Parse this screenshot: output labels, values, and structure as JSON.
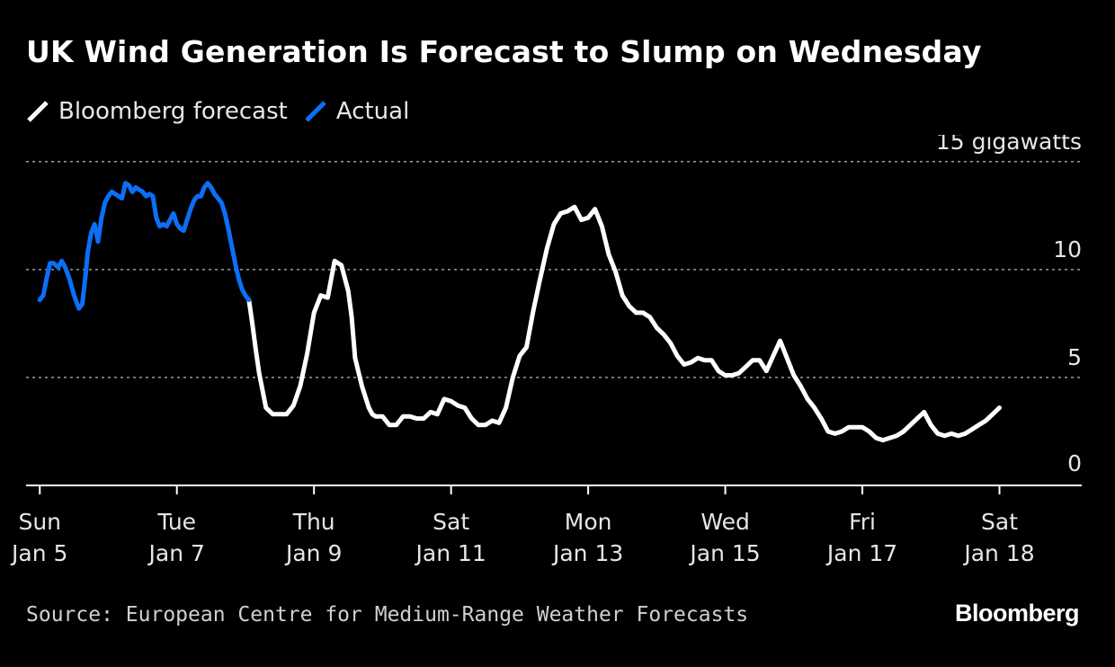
{
  "title": "UK Wind Generation Is Forecast to Slump on Wednesday",
  "legend": [
    {
      "label": "Bloomberg forecast",
      "color": "#ffffff"
    },
    {
      "label": "Actual",
      "color": "#0b6ff7"
    }
  ],
  "source": "Source: European Centre for Medium-Range Weather Forecasts",
  "brand": "Bloomberg",
  "chart_data": {
    "type": "line",
    "title": "UK Wind Generation Is Forecast to Slump on Wednesday",
    "ylabel": "15 gigawatts",
    "ylim": [
      0,
      15.2
    ],
    "xlim": [
      -0.2,
      15.2
    ],
    "yticks": [
      {
        "value": 0,
        "label": "0"
      },
      {
        "value": 5,
        "label": "5"
      },
      {
        "value": 10,
        "label": "10"
      },
      {
        "value": 15,
        "label": "15 gigawatts"
      }
    ],
    "xticks": [
      {
        "value": 0,
        "line1": "Sun",
        "line2": "Jan 5"
      },
      {
        "value": 2,
        "line1": "Tue",
        "line2": "Jan 7"
      },
      {
        "value": 4,
        "line1": "Thu",
        "line2": "Jan 9"
      },
      {
        "value": 6,
        "line1": "Sat",
        "line2": "Jan 11"
      },
      {
        "value": 8,
        "line1": "Mon",
        "line2": "Jan 13"
      },
      {
        "value": 10,
        "line1": "Wed",
        "line2": "Jan 15"
      },
      {
        "value": 12,
        "line1": "Fri",
        "line2": "Jan 17"
      },
      {
        "value": 14,
        "line1": "Sat",
        "line2": "Jan 18"
      }
    ],
    "series": [
      {
        "name": "Actual",
        "color": "#0b6ff7",
        "x": [
          0.0,
          0.05,
          0.1,
          0.15,
          0.2,
          0.27,
          0.32,
          0.37,
          0.43,
          0.5,
          0.57,
          0.62,
          0.67,
          0.7,
          0.75,
          0.8,
          0.85,
          0.9,
          0.95,
          1.0,
          1.05,
          1.1,
          1.15,
          1.2,
          1.25,
          1.3,
          1.35,
          1.4,
          1.45,
          1.5,
          1.55,
          1.6,
          1.65,
          1.7,
          1.75,
          1.8,
          1.85,
          1.9,
          1.95,
          2.0,
          2.05,
          2.1,
          2.15,
          2.2,
          2.25,
          2.3,
          2.35,
          2.4,
          2.45,
          2.5,
          2.55,
          2.6,
          2.65,
          2.7,
          2.75,
          2.8,
          2.85,
          2.9,
          2.95,
          3.0,
          3.05
        ],
        "values": [
          8.6,
          8.8,
          9.6,
          10.3,
          10.3,
          10.1,
          10.4,
          10.1,
          9.6,
          8.8,
          8.2,
          8.4,
          9.8,
          10.8,
          11.7,
          12.1,
          11.3,
          12.4,
          13.1,
          13.4,
          13.6,
          13.5,
          13.4,
          13.3,
          14.0,
          13.9,
          13.6,
          13.8,
          13.7,
          13.6,
          13.4,
          13.5,
          13.4,
          12.4,
          12.0,
          12.1,
          12.0,
          12.3,
          12.6,
          12.1,
          11.9,
          11.8,
          12.3,
          12.8,
          13.2,
          13.4,
          13.4,
          13.8,
          14.0,
          13.8,
          13.5,
          13.3,
          13.1,
          12.6,
          11.9,
          11.1,
          10.3,
          9.6,
          9.1,
          8.8,
          8.6
        ],
        "note": "first and last points anchor the curve; the tail joins the forecast at x=3.05"
      },
      {
        "name": "Bloomberg forecast",
        "color": "#ffffff",
        "x": [
          3.05,
          3.1,
          3.15,
          3.2,
          3.25,
          3.3,
          3.4,
          3.5,
          3.6,
          3.7,
          3.8,
          3.9,
          4.0,
          4.1,
          4.2,
          4.3,
          4.4,
          4.5,
          4.55,
          4.6,
          4.7,
          4.8,
          4.85,
          4.9,
          5.0,
          5.1,
          5.2,
          5.3,
          5.4,
          5.5,
          5.6,
          5.7,
          5.8,
          5.9,
          6.0,
          6.1,
          6.2,
          6.3,
          6.4,
          6.5,
          6.6,
          6.7,
          6.8,
          6.9,
          7.0,
          7.1,
          7.2,
          7.3,
          7.4,
          7.5,
          7.6,
          7.7,
          7.8,
          7.9,
          8.0,
          8.1,
          8.2,
          8.3,
          8.4,
          8.5,
          8.6,
          8.7,
          8.8,
          8.9,
          9.0,
          9.1,
          9.2,
          9.3,
          9.4,
          9.5,
          9.6,
          9.7,
          9.8,
          9.9,
          10.0,
          10.1,
          10.2,
          10.3,
          10.4,
          10.5,
          10.6,
          10.7,
          10.8,
          10.9,
          11.0,
          11.1,
          11.2,
          11.3,
          11.4,
          11.5,
          11.6,
          11.7,
          11.8,
          11.9,
          12.0,
          12.1,
          12.2,
          12.3,
          12.4,
          12.5,
          12.6,
          12.7,
          12.8,
          12.9,
          13.0,
          13.1,
          13.2,
          13.3,
          13.4,
          13.5,
          13.6,
          13.7,
          13.8,
          13.9,
          14.0
        ],
        "values": [
          8.6,
          7.5,
          6.3,
          5.2,
          4.4,
          3.6,
          3.3,
          3.3,
          3.3,
          3.7,
          4.6,
          6.1,
          8.0,
          8.8,
          8.7,
          10.4,
          10.2,
          9.0,
          7.8,
          5.9,
          4.6,
          3.6,
          3.3,
          3.2,
          3.2,
          2.8,
          2.8,
          3.2,
          3.2,
          3.1,
          3.1,
          3.4,
          3.3,
          4.0,
          3.9,
          3.7,
          3.6,
          3.1,
          2.8,
          2.8,
          3.0,
          2.9,
          3.6,
          5.0,
          6.0,
          6.4,
          8.1,
          9.6,
          11.0,
          12.1,
          12.6,
          12.7,
          12.9,
          12.3,
          12.4,
          12.8,
          12.0,
          10.7,
          9.9,
          8.8,
          8.3,
          8.0,
          8.0,
          7.8,
          7.3,
          7.0,
          6.6,
          6.0,
          5.6,
          5.7,
          5.9,
          5.8,
          5.8,
          5.3,
          5.1,
          5.1,
          5.2,
          5.5,
          5.8,
          5.8,
          5.3,
          6.0,
          6.7,
          5.9,
          5.1,
          4.6,
          4.0,
          3.6,
          3.1,
          2.5,
          2.4,
          2.5,
          2.7,
          2.7,
          2.7,
          2.5,
          2.2,
          2.1,
          2.2,
          2.3,
          2.5,
          2.8,
          3.1,
          3.4,
          2.8,
          2.4,
          2.3,
          2.4,
          2.3,
          2.4,
          2.6,
          2.8,
          3.0,
          3.3,
          3.6
        ]
      }
    ]
  }
}
